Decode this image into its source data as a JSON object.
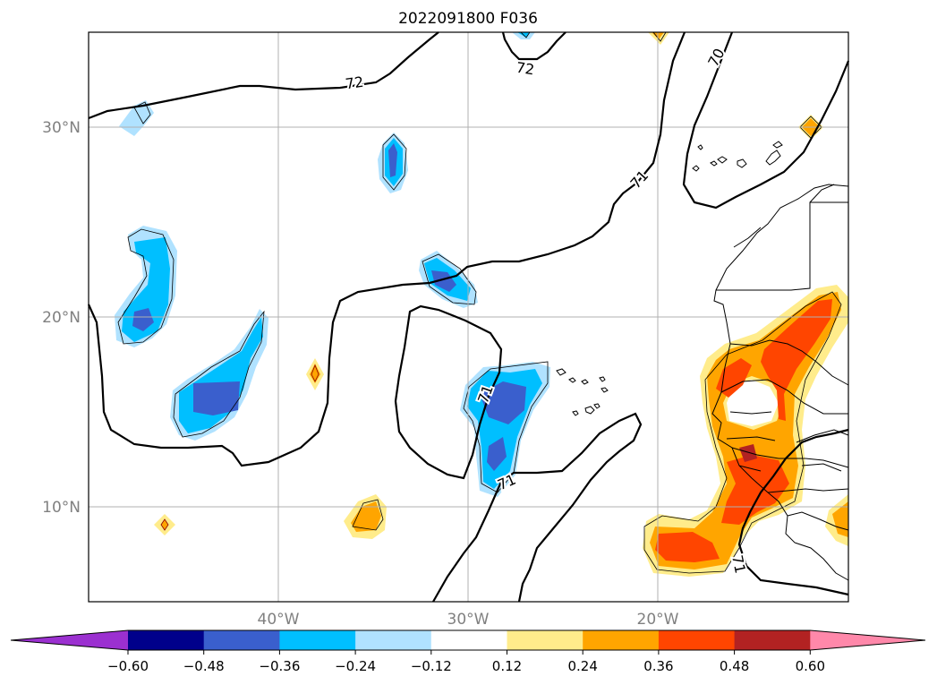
{
  "title": "2022091800 F036",
  "lat_labels": [
    "30°N",
    "20°N",
    "10°N"
  ],
  "lon_labels": [
    "40°W",
    "30°W",
    "20°W"
  ],
  "contour_labels": [
    "72",
    "72",
    "70",
    "71",
    "71",
    "71",
    "71"
  ],
  "colorbar": {
    "ticks": [
      "−0.60",
      "−0.48",
      "−0.36",
      "−0.24",
      "−0.12",
      "0.12",
      "0.24",
      "0.36",
      "0.48",
      "0.60"
    ],
    "colors": [
      "#9b30d0",
      "#00008b",
      "#3a5fcd",
      "#00bfff",
      "#b0e2ff",
      "#ffffff",
      "#ffec8b",
      "#ffa500",
      "#ff4500",
      "#b22222",
      "#ff88aa"
    ]
  },
  "colors": {
    "neg_light": "#b0e2ff",
    "neg_mid": "#00bfff",
    "neg_dark": "#3a5fcd",
    "pos_light": "#ffec8b",
    "pos_mid": "#ffa500",
    "pos_dark": "#ff4500",
    "grid": "#b0b0b0",
    "label_gray": "#808080"
  }
}
